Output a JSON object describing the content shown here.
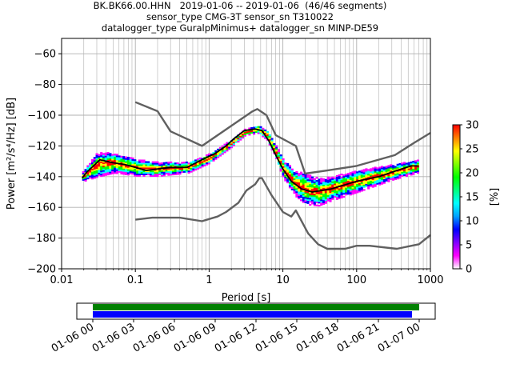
{
  "title": {
    "line1": "BK.BK66.00.HHN   2019-01-06 -- 2019-01-06  (46/46 segments)",
    "line2": "sensor_type CMG-3T sensor_sn T310022",
    "line3": "datalogger_type GuralpMinimus+ datalogger_sn MINP-DE59"
  },
  "chart_data": {
    "type": "heatmap",
    "xlabel": "Period [s]",
    "ylabel": "Power [m²/s⁴/Hz] [dB]",
    "xscale": "log",
    "xlim": [
      0.01,
      1000
    ],
    "ylim": [
      -200,
      -50
    ],
    "xticks": [
      0.01,
      0.1,
      1,
      10,
      100,
      1000
    ],
    "xticklabels": [
      "0.01",
      "0.1",
      "1",
      "10",
      "100",
      "1000"
    ],
    "yticks": [
      -60,
      -80,
      -100,
      -120,
      -140,
      -160,
      -180,
      -200
    ],
    "grid": true,
    "colorbar": {
      "label": "[%]",
      "range": [
        0,
        30
      ],
      "ticks": [
        0,
        5,
        10,
        15,
        20,
        25,
        30
      ],
      "colors": [
        "#ffffff",
        "#ff00ff",
        "#0000ff",
        "#00ffff",
        "#00ff00",
        "#ffff00",
        "#ff0000"
      ]
    },
    "series": [
      {
        "name": "",
        "color": "#606060",
        "points": [
          [
            0.1,
            -91.5
          ],
          [
            0.2,
            -97.4
          ],
          [
            0.3,
            -110.5
          ],
          [
            0.8,
            -120
          ],
          [
            3.8,
            -97.7
          ],
          [
            4.5,
            -96
          ],
          [
            6,
            -100
          ],
          [
            8,
            -113
          ],
          [
            15,
            -120
          ],
          [
            20,
            -138
          ],
          [
            40,
            -136
          ],
          [
            100,
            -133
          ],
          [
            330,
            -126
          ],
          [
            600,
            -118
          ],
          [
            1000,
            -111.5
          ]
        ]
      },
      {
        "name": "",
        "color": "#606060",
        "points": [
          [
            0.1,
            -168
          ],
          [
            0.17,
            -166.7
          ],
          [
            0.4,
            -166.7
          ],
          [
            0.8,
            -169
          ],
          [
            1.3,
            -166
          ],
          [
            1.7,
            -163
          ],
          [
            2.5,
            -157
          ],
          [
            3.2,
            -149
          ],
          [
            4.2,
            -145
          ],
          [
            4.8,
            -141
          ],
          [
            5.2,
            -141
          ],
          [
            7,
            -152
          ],
          [
            10,
            -163
          ],
          [
            13,
            -166
          ],
          [
            15,
            -162
          ],
          [
            22,
            -177
          ],
          [
            30,
            -184
          ],
          [
            40,
            -187
          ],
          [
            70,
            -187
          ],
          [
            100,
            -185
          ],
          [
            150,
            -185
          ],
          [
            350,
            -187
          ],
          [
            700,
            -184
          ],
          [
            1000,
            -178
          ]
        ]
      },
      {
        "name": "",
        "color": "#000000",
        "points": [
          [
            0.019,
            -141
          ],
          [
            0.022,
            -137
          ],
          [
            0.027,
            -133
          ],
          [
            0.033,
            -129
          ],
          [
            0.05,
            -131
          ],
          [
            0.07,
            -132
          ],
          [
            0.1,
            -134
          ],
          [
            0.14,
            -136
          ],
          [
            0.2,
            -135
          ],
          [
            0.3,
            -134
          ],
          [
            0.5,
            -134
          ],
          [
            0.8,
            -129
          ],
          [
            1.2,
            -125
          ],
          [
            1.7,
            -120
          ],
          [
            2.2,
            -115
          ],
          [
            3,
            -110
          ],
          [
            4.2,
            -109
          ],
          [
            5.2,
            -110
          ],
          [
            6.5,
            -117
          ],
          [
            8,
            -126
          ],
          [
            10,
            -135
          ],
          [
            13,
            -143
          ],
          [
            18,
            -148
          ],
          [
            25,
            -150
          ],
          [
            45,
            -148
          ],
          [
            100,
            -143
          ],
          [
            200,
            -140
          ],
          [
            350,
            -136
          ],
          [
            550,
            -133
          ],
          [
            700,
            -133
          ]
        ]
      }
    ],
    "density_band": {
      "center": [
        [
          0.019,
          -140
        ],
        [
          0.03,
          -132
        ],
        [
          0.05,
          -131
        ],
        [
          0.1,
          -134
        ],
        [
          0.2,
          -135
        ],
        [
          0.5,
          -134
        ],
        [
          1,
          -128
        ],
        [
          2,
          -118
        ],
        [
          3,
          -111
        ],
        [
          4.5,
          -109
        ],
        [
          6,
          -113
        ],
        [
          8,
          -125
        ],
        [
          10,
          -135
        ],
        [
          14,
          -144
        ],
        [
          20,
          -148
        ],
        [
          30,
          -150
        ],
        [
          60,
          -146
        ],
        [
          100,
          -143
        ],
        [
          300,
          -137
        ],
        [
          700,
          -133
        ]
      ],
      "halfwidth": [
        [
          0.019,
          3
        ],
        [
          0.03,
          8
        ],
        [
          0.06,
          6
        ],
        [
          0.3,
          4
        ],
        [
          1,
          3
        ],
        [
          3,
          2
        ],
        [
          6,
          3
        ],
        [
          10,
          6
        ],
        [
          20,
          10
        ],
        [
          40,
          8
        ],
        [
          100,
          7
        ],
        [
          300,
          5
        ],
        [
          700,
          4
        ]
      ]
    },
    "timeline": {
      "ticklabels": [
        "01-06 00",
        "01-06 03",
        "01-06 06",
        "01-06 09",
        "01-06 12",
        "01-06 15",
        "01-06 18",
        "01-06 21",
        "01-07 00"
      ],
      "data_bar_color": "#008000",
      "psd_bar_color": "#0000ff"
    }
  }
}
